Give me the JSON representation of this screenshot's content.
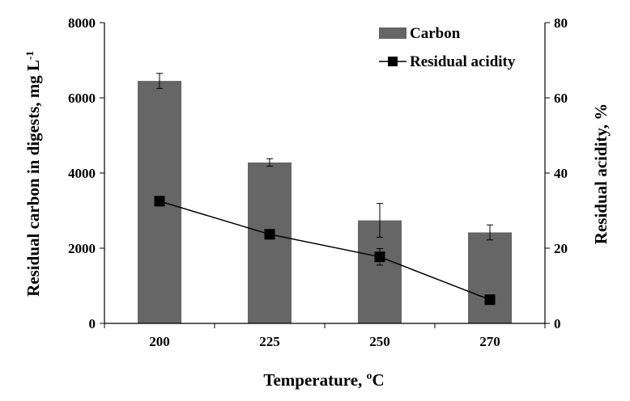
{
  "chart_data": {
    "type": "bar+line",
    "categories": [
      "200",
      "225",
      "250",
      "270"
    ],
    "xlabel": "Temperature,  ºC",
    "ylabel_left": "Residual carbon in digests, mg  L",
    "ylabel_left_superscript": "-1",
    "ylabel_right": "Residual acidity, %",
    "ylim_left": [
      0,
      8000
    ],
    "ylim_right": [
      0,
      80
    ],
    "yticks_left": [
      "0",
      "2000",
      "4000",
      "6000",
      "8000"
    ],
    "yticks_right": [
      "0",
      "20",
      "40",
      "60",
      "80"
    ],
    "grid": false,
    "legend_position": "top-right",
    "series": [
      {
        "name": "Carbon",
        "type": "bar",
        "axis": "left",
        "color": "#666666",
        "values": [
          6450,
          4280,
          2740,
          2420
        ],
        "errors": [
          200,
          100,
          450,
          200
        ]
      },
      {
        "name": "Residual acidity",
        "type": "line",
        "axis": "right",
        "color": "#000000",
        "values": [
          32.5,
          23.7,
          17.7,
          6.3
        ],
        "errors": [
          0,
          0,
          2.2,
          0
        ]
      }
    ]
  }
}
